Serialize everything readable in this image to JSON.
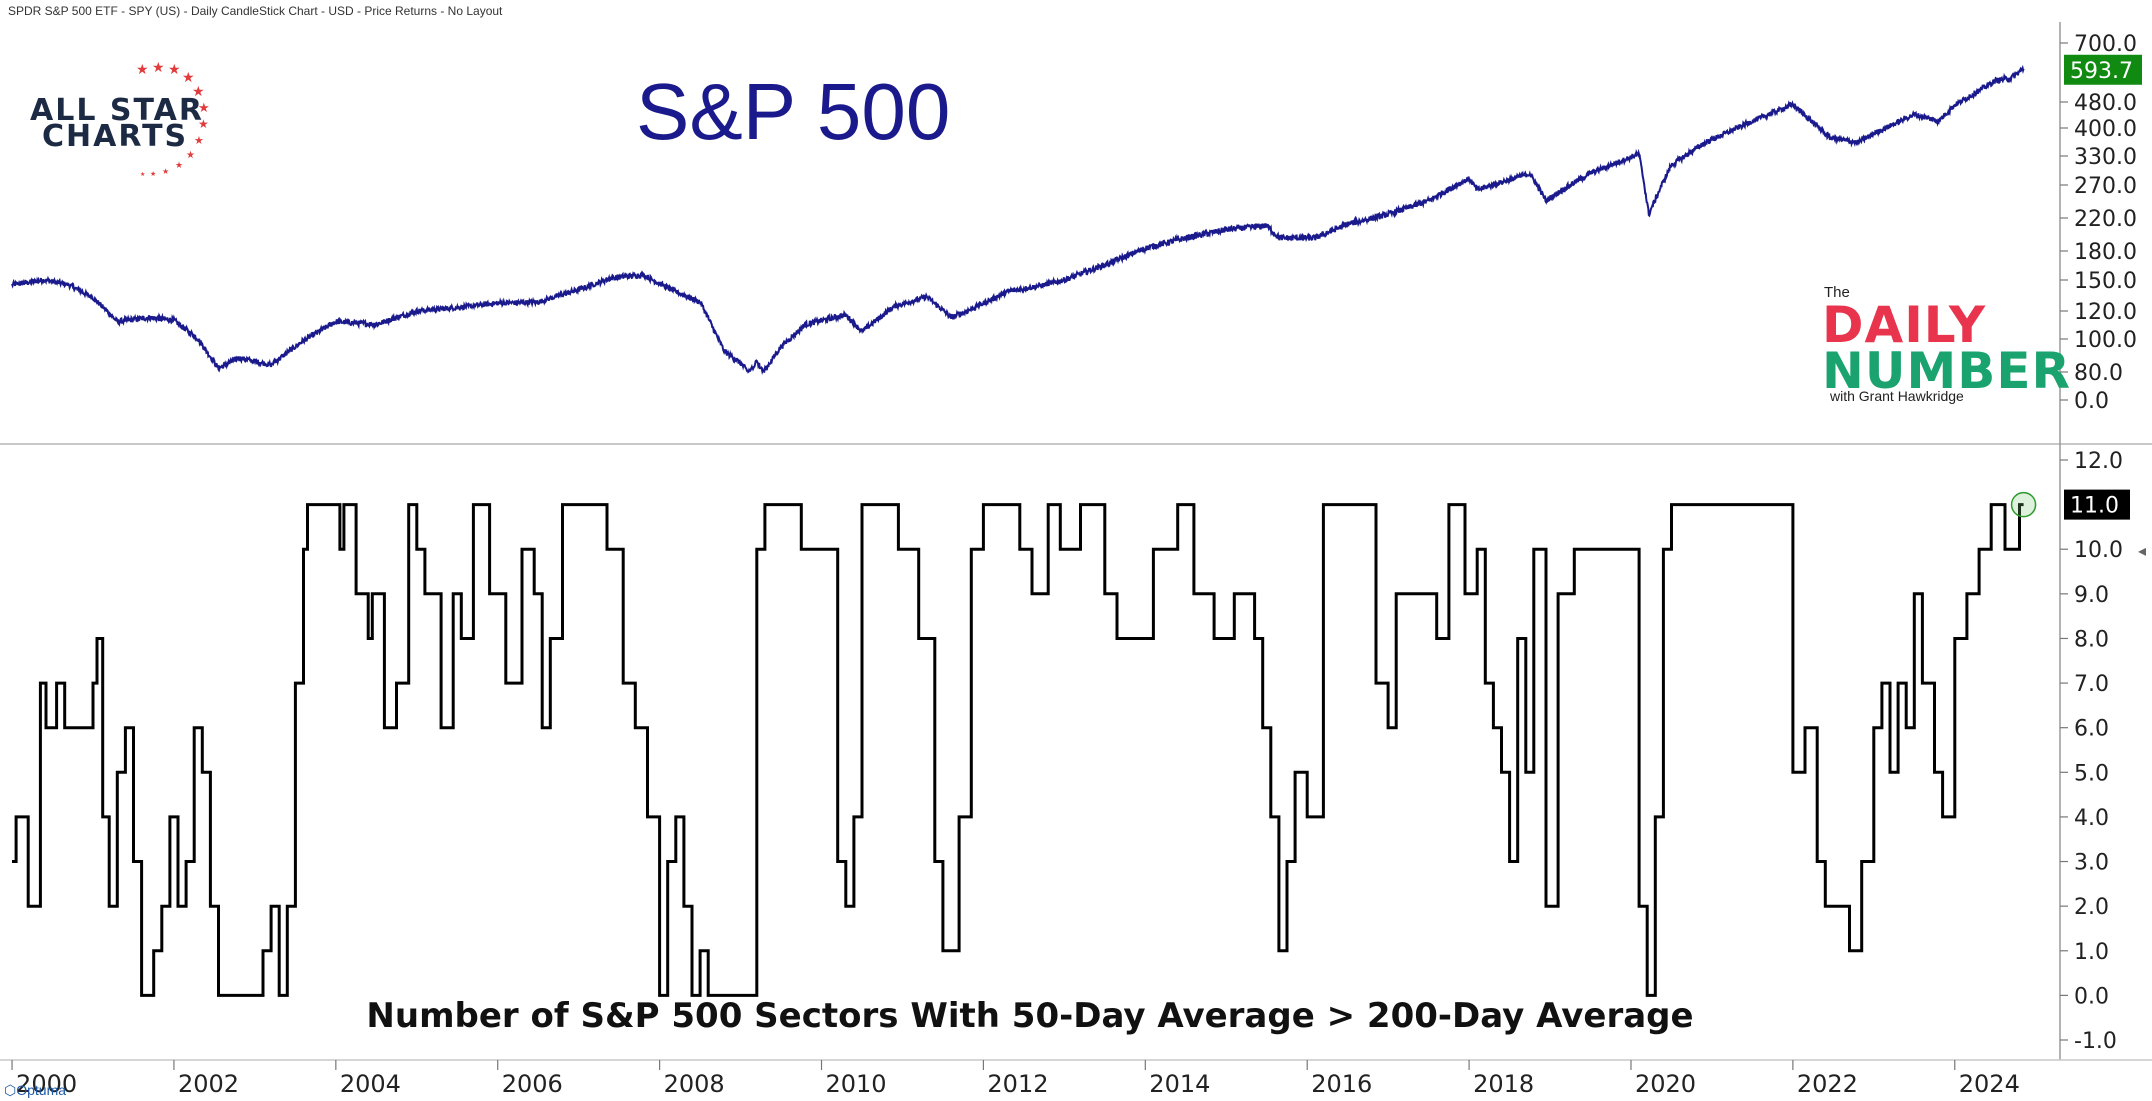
{
  "header": {
    "text": "SPDR S&P 500 ETF - SPY (US) - Daily CandleStick Chart - USD - Price Returns - No Layout"
  },
  "logos": {
    "all_star_line1": "ALL STAR",
    "all_star_line2": "CHARTS",
    "daily_number_the": "The",
    "daily_number_line1": "DAILY",
    "daily_number_line2": "NUMBER",
    "daily_number_with": "with Grant Hawkridge"
  },
  "footer": {
    "brand": "Optuma"
  },
  "colors": {
    "price_line": "#1a1a8c",
    "count_line": "#000000",
    "last_price_badge": "#118a11",
    "last_count_badge": "#000000",
    "star_red": "#e23b3b",
    "daily_red": "#e8344c",
    "number_green": "#1aa36e"
  },
  "chart_data": [
    {
      "type": "line",
      "title": "S&P 500",
      "log_scale": true,
      "x_ticks": [],
      "y_ticks": [
        "700.0",
        "593.7",
        "480.0",
        "400.0",
        "330.0",
        "270.0",
        "220.0",
        "180.0",
        "150.0",
        "120.0",
        "100.0",
        "80.0",
        "0.0"
      ],
      "last_value_label": "593.7",
      "series": [
        {
          "x": [
            2000.0,
            2000.4,
            2000.7,
            2001.0,
            2001.3,
            2001.7,
            2002.0,
            2002.3,
            2002.55,
            2002.8,
            2003.2,
            2003.6,
            2004.0,
            2004.5,
            2005.0,
            2005.5,
            2006.0,
            2006.5,
            2007.0,
            2007.4,
            2007.8,
            2008.2,
            2008.5,
            2008.8,
            2009.0,
            2009.2,
            2009.5,
            2009.8,
            2010.3,
            2010.5,
            2010.9,
            2011.3,
            2011.6,
            2011.8,
            2012.3,
            2012.7,
            2013.0,
            2013.5,
            2014.0,
            2014.5,
            2015.0,
            2015.5,
            2015.65,
            2016.1,
            2016.5,
            2017.0,
            2017.5,
            2018.0,
            2018.1,
            2018.75,
            2018.95,
            2019.5,
            2020.1,
            2020.22,
            2020.5,
            2020.9,
            2021.5,
            2022.0,
            2022.45,
            2022.8,
            2023.0,
            2023.5,
            2023.8,
            2024.0,
            2024.5,
            2024.7,
            2024.85
          ],
          "values": [
            145,
            150,
            145,
            132,
            112,
            115,
            113,
            100,
            82,
            88,
            84,
            99,
            112,
            110,
            120,
            123,
            127,
            128,
            140,
            152,
            155,
            138,
            128,
            92,
            85,
            75,
            95,
            110,
            117,
            105,
            124,
            133,
            115,
            120,
            138,
            144,
            150,
            165,
            183,
            195,
            205,
            210,
            195,
            195,
            212,
            225,
            245,
            282,
            262,
            292,
            245,
            293,
            335,
            225,
            310,
            360,
            420,
            472,
            375,
            362,
            385,
            440,
            420,
            470,
            550,
            560,
            593.7
          ]
        }
      ]
    },
    {
      "type": "line",
      "title": "Number of S&P 500 Sectors With 50-Day Average > 200-Day Average",
      "ylim": [
        -1,
        12
      ],
      "y_ticks": [
        "12.0",
        "11.0",
        "10.0",
        "9.0",
        "8.0",
        "7.0",
        "6.0",
        "5.0",
        "4.0",
        "3.0",
        "2.0",
        "1.0",
        "0.0",
        "-1.0"
      ],
      "x_ticks": [
        "2000",
        "2002",
        "2004",
        "2006",
        "2008",
        "2010",
        "2012",
        "2014",
        "2016",
        "2018",
        "2020",
        "2022",
        "2024"
      ],
      "last_value_label": "11.0",
      "series": [
        {
          "x": [
            2000.0,
            2000.05,
            2000.2,
            2000.35,
            2000.42,
            2000.55,
            2000.65,
            2000.75,
            2000.85,
            2001.0,
            2001.05,
            2001.12,
            2001.2,
            2001.3,
            2001.4,
            2001.5,
            2001.6,
            2001.75,
            2001.85,
            2001.95,
            2002.05,
            2002.15,
            2002.25,
            2002.35,
            2002.45,
            2002.55,
            2002.7,
            2002.9,
            2003.1,
            2003.2,
            2003.3,
            2003.4,
            2003.5,
            2003.6,
            2003.65,
            2003.75,
            2004.05,
            2004.1,
            2004.25,
            2004.4,
            2004.45,
            2004.6,
            2004.75,
            2004.9,
            2005.0,
            2005.1,
            2005.3,
            2005.45,
            2005.55,
            2005.7,
            2005.9,
            2006.1,
            2006.3,
            2006.45,
            2006.55,
            2006.65,
            2006.8,
            2007.0,
            2007.25,
            2007.35,
            2007.55,
            2007.7,
            2007.85,
            2008.0,
            2008.1,
            2008.2,
            2008.3,
            2008.4,
            2008.5,
            2008.6,
            2008.75,
            2009.0,
            2009.2,
            2009.3,
            2009.45,
            2009.6,
            2009.75,
            2010.2,
            2010.3,
            2010.4,
            2010.5,
            2010.6,
            2010.8,
            2010.95,
            2011.2,
            2011.4,
            2011.5,
            2011.6,
            2011.7,
            2011.85,
            2012.0,
            2012.2,
            2012.45,
            2012.6,
            2012.8,
            2012.95,
            2013.2,
            2013.5,
            2013.65,
            2013.85,
            2014.1,
            2014.4,
            2014.6,
            2014.85,
            2015.1,
            2015.35,
            2015.45,
            2015.55,
            2015.65,
            2015.75,
            2015.85,
            2016.0,
            2016.2,
            2016.3,
            2016.45,
            2016.65,
            2016.85,
            2017.0,
            2017.1,
            2017.2,
            2017.4,
            2017.5,
            2017.6,
            2017.75,
            2017.95,
            2018.1,
            2018.2,
            2018.3,
            2018.4,
            2018.5,
            2018.6,
            2018.7,
            2018.8,
            2018.95,
            2019.1,
            2019.3,
            2019.5,
            2019.7,
            2019.9,
            2020.0,
            2020.1,
            2020.2,
            2020.3,
            2020.4,
            2020.5,
            2020.7,
            2020.9,
            2021.2,
            2021.5,
            2021.8,
            2022.0,
            2022.15,
            2022.3,
            2022.4,
            2022.5,
            2022.7,
            2022.85,
            2023.0,
            2023.1,
            2023.2,
            2023.3,
            2023.4,
            2023.5,
            2023.6,
            2023.75,
            2023.85,
            2024.0,
            2024.15,
            2024.3,
            2024.45,
            2024.55,
            2024.62,
            2024.7,
            2024.8,
            2024.85
          ],
          "values": [
            3,
            4,
            2,
            7,
            6,
            7,
            6,
            6,
            6,
            7,
            8,
            4,
            2,
            5,
            6,
            3,
            0,
            1,
            2,
            4,
            2,
            3,
            6,
            5,
            2,
            0,
            0,
            0,
            1,
            2,
            0,
            2,
            7,
            10,
            11,
            11,
            10,
            11,
            9,
            8,
            9,
            6,
            7,
            11,
            10,
            9,
            6,
            9,
            8,
            11,
            9,
            7,
            10,
            9,
            6,
            8,
            11,
            11,
            11,
            10,
            7,
            6,
            4,
            0,
            3,
            4,
            2,
            0,
            1,
            0,
            0,
            0,
            10,
            11,
            11,
            11,
            10,
            3,
            2,
            4,
            11,
            11,
            11,
            10,
            8,
            3,
            1,
            1,
            4,
            10,
            11,
            11,
            10,
            9,
            11,
            10,
            11,
            9,
            8,
            8,
            10,
            11,
            9,
            8,
            9,
            8,
            6,
            4,
            1,
            3,
            5,
            4,
            11,
            11,
            11,
            11,
            7,
            6,
            9,
            9,
            9,
            9,
            8,
            11,
            9,
            10,
            7,
            6,
            5,
            3,
            8,
            5,
            10,
            2,
            9,
            10,
            10,
            10,
            10,
            10,
            2,
            0,
            4,
            10,
            11,
            11,
            11,
            11,
            11,
            11,
            5,
            6,
            3,
            2,
            2,
            1,
            3,
            6,
            7,
            5,
            7,
            6,
            9,
            7,
            5,
            4,
            8,
            9,
            10,
            11,
            11,
            10,
            10,
            11,
            11
          ]
        }
      ]
    }
  ]
}
